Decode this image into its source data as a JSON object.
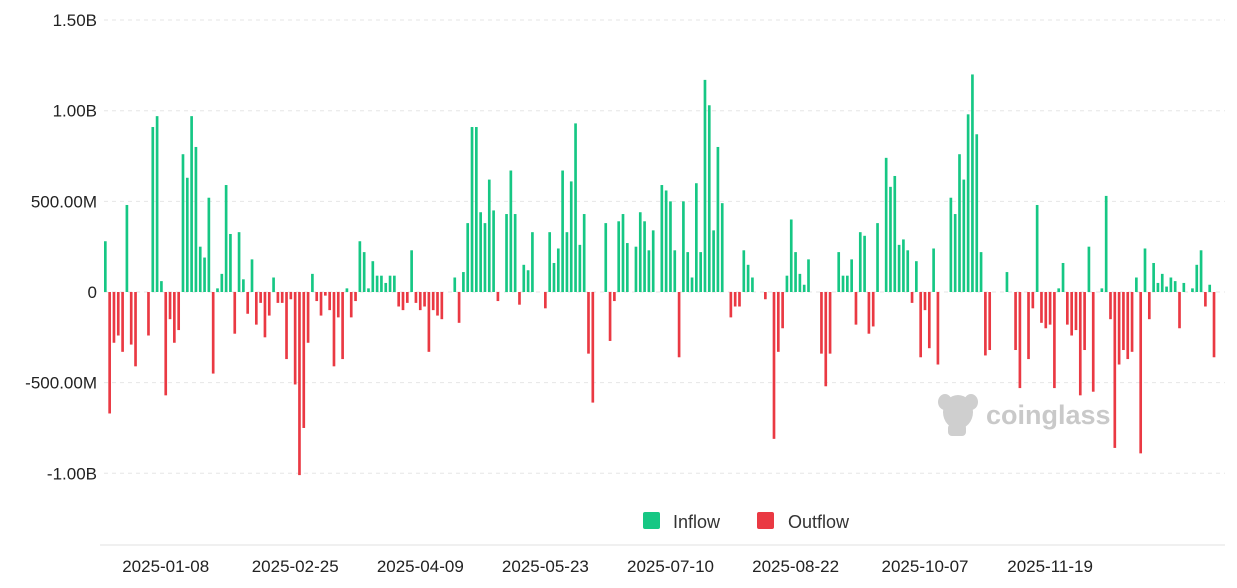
{
  "chart_data": {
    "type": "bar",
    "y_ticks": [
      "1.50B",
      "1.00B",
      "500.00M",
      "0",
      "-500.00M",
      "-1.00B"
    ],
    "x_ticks": [
      "2025-01-08",
      "2025-02-25",
      "2025-04-09",
      "2025-05-23",
      "2025-07-10",
      "2025-08-22",
      "2025-10-07",
      "2025-11-19"
    ],
    "ylim": [
      -1250000000,
      1500000000
    ],
    "grid": true,
    "legend_position": "bottom-right",
    "series": [
      {
        "name": "Inflow",
        "color": "#16c784"
      },
      {
        "name": "Outflow",
        "color": "#ea3943"
      }
    ],
    "values_millions": [
      280,
      -670,
      -280,
      -240,
      -330,
      480,
      -290,
      -410,
      0,
      0,
      -240,
      910,
      970,
      60,
      -570,
      -150,
      -280,
      -210,
      760,
      630,
      970,
      800,
      250,
      190,
      520,
      -450,
      20,
      100,
      590,
      320,
      -230,
      330,
      70,
      -120,
      180,
      -180,
      -60,
      -250,
      -130,
      80,
      -60,
      -60,
      -370,
      -40,
      -510,
      -1010,
      -750,
      -280,
      100,
      -50,
      -130,
      -20,
      -100,
      -410,
      -140,
      -370,
      20,
      -140,
      -50,
      280,
      220,
      20,
      170,
      90,
      90,
      50,
      90,
      90,
      -80,
      -100,
      -60,
      230,
      -60,
      -100,
      -80,
      -330,
      -100,
      -130,
      -150,
      0,
      0,
      80,
      -170,
      110,
      380,
      910,
      910,
      440,
      380,
      620,
      450,
      -50,
      0,
      430,
      670,
      430,
      -70,
      150,
      120,
      330,
      0,
      0,
      -90,
      330,
      160,
      240,
      670,
      330,
      610,
      930,
      260,
      430,
      -340,
      -610,
      0,
      0,
      380,
      -270,
      -50,
      390,
      430,
      270,
      0,
      250,
      440,
      390,
      230,
      340,
      0,
      590,
      560,
      500,
      230,
      -360,
      500,
      220,
      80,
      600,
      220,
      1170,
      1030,
      340,
      800,
      490,
      0,
      -140,
      -80,
      -80,
      230,
      150,
      80,
      0,
      0,
      -40,
      0,
      -810,
      -330,
      -200,
      90,
      400,
      220,
      100,
      40,
      180,
      0,
      0,
      -340,
      -520,
      -340,
      0,
      220,
      90,
      90,
      180,
      -180,
      330,
      310,
      -230,
      -190,
      380,
      0,
      740,
      580,
      640,
      260,
      290,
      230,
      -60,
      170,
      -360,
      -100,
      -310,
      240,
      -400,
      0,
      0,
      520,
      430,
      760,
      620,
      980,
      1200,
      870,
      220,
      -350,
      -320,
      0,
      0,
      0,
      110,
      0,
      -320,
      -530,
      0,
      -370,
      -90,
      480,
      -170,
      -200,
      -180,
      -530,
      20,
      160,
      -180,
      -240,
      -210,
      -570,
      -320,
      250,
      -550,
      0,
      20,
      530,
      -150,
      -860,
      -400,
      -320,
      -370,
      -330,
      80,
      -890,
      240,
      -150,
      160,
      50,
      100,
      30,
      80,
      60,
      -200,
      50,
      0,
      20,
      150,
      230,
      -80,
      40,
      -360
    ],
    "tick_indices": [
      14,
      44,
      73,
      102,
      131,
      160,
      190,
      219
    ]
  },
  "legend": {
    "inflow_label": "Inflow",
    "outflow_label": "Outflow"
  },
  "watermark": {
    "text": "coinglass",
    "icon": "coinglass-logo-icon"
  }
}
